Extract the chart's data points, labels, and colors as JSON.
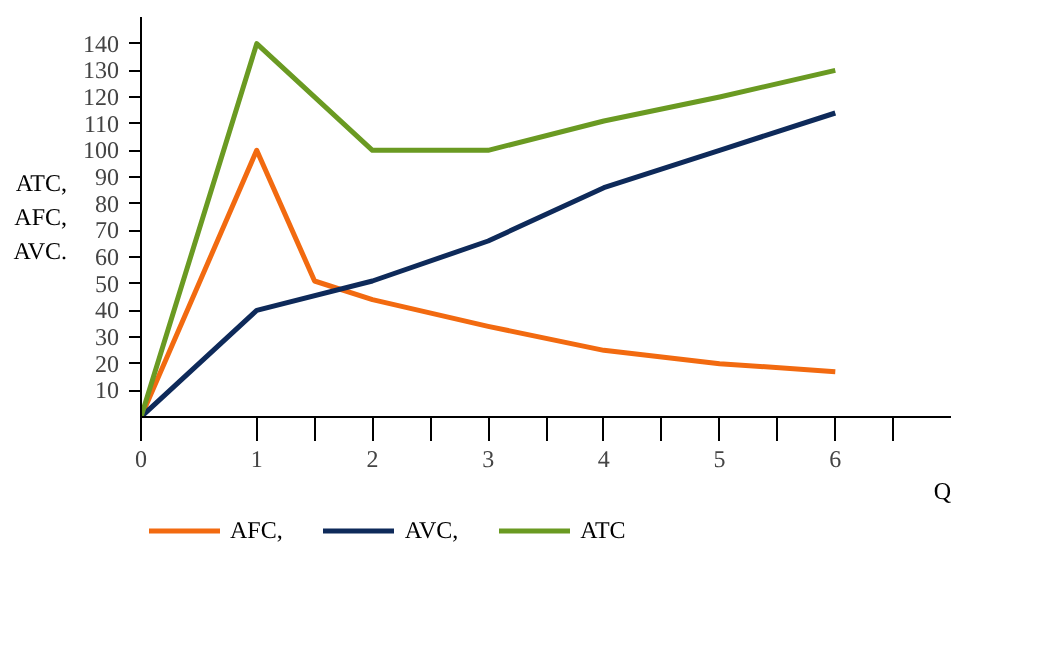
{
  "chart_data": {
    "type": "line",
    "xlabel": "Q",
    "ylabel": "ATC,\nAFC,\nAVC.",
    "series": [
      {
        "name": "AFC,",
        "color": "#f26a10",
        "x": [
          0,
          1,
          1.5,
          2,
          3,
          4,
          5,
          6
        ],
        "values": [
          0,
          100,
          51,
          44,
          34,
          25,
          20,
          17
        ]
      },
      {
        "name": "AVC,",
        "color": "#0e2a5a",
        "x": [
          0,
          1,
          2,
          3,
          4,
          5,
          6
        ],
        "values": [
          0,
          40,
          51,
          66,
          86,
          100,
          114
        ]
      },
      {
        "name": "ATC",
        "color": "#6a9a22",
        "x": [
          0,
          1,
          2,
          3,
          4,
          5,
          6
        ],
        "values": [
          0,
          140,
          100,
          100,
          111,
          120,
          130
        ]
      }
    ],
    "xlim": [
      0,
      7
    ],
    "ylim": [
      0,
      150
    ],
    "xticks": [
      0,
      1,
      {
        "value": 1.5,
        "label": null
      },
      2,
      {
        "value": 2.5,
        "label": null
      },
      3,
      {
        "value": 3.5,
        "label": null
      },
      4,
      {
        "value": 4.5,
        "label": null
      },
      5,
      {
        "value": 5.5,
        "label": null
      },
      6,
      {
        "value": 6.5,
        "label": null
      }
    ],
    "yticks": [
      10,
      20,
      30,
      40,
      50,
      60,
      70,
      80,
      90,
      100,
      110,
      120,
      130,
      140
    ],
    "grid": false,
    "legend": "bottom left",
    "marker": "none",
    "line_style": "solid"
  }
}
